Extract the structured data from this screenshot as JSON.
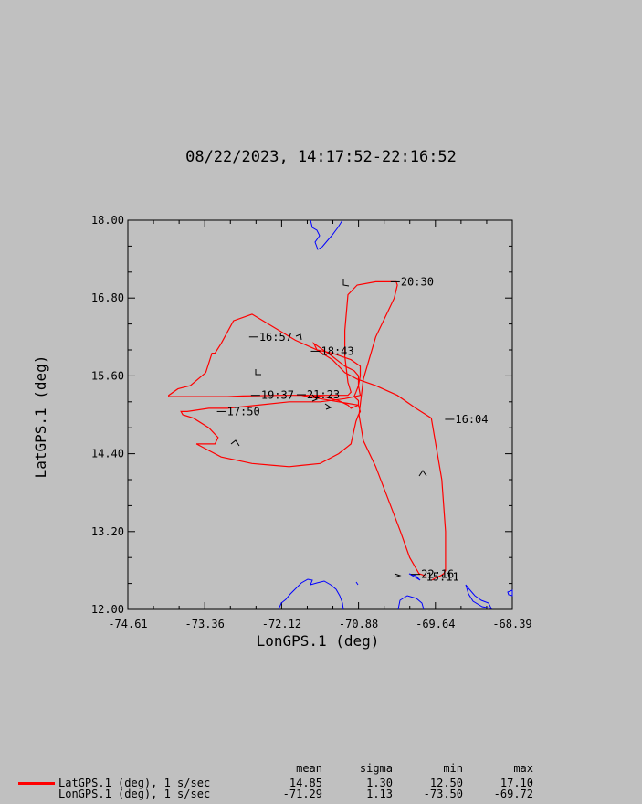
{
  "title": "08/22/2023, 14:17:52-22:16:52",
  "chart_data": {
    "type": "line",
    "title": "08/22/2023, 14:17:52-22:16:52",
    "xlabel": "LonGPS.1 (deg)",
    "ylabel": "LatGPS.1 (deg)",
    "xlim": [
      -74.61,
      -68.39
    ],
    "ylim": [
      12.0,
      18.0
    ],
    "xticks": [
      "-74.61",
      "-73.36",
      "-72.12",
      "-70.88",
      "-69.64",
      "-68.39"
    ],
    "yticks": [
      "12.00",
      "13.20",
      "14.40",
      "15.60",
      "16.80",
      "18.00"
    ],
    "grid": false,
    "series": [
      {
        "name": "LatGPS.1 (deg), 1 s/sec",
        "color": "#ff0000",
        "x": [
          -69.7,
          -69.6,
          -69.55,
          -69.5,
          -69.47,
          -69.47,
          -69.53,
          -69.7,
          -69.95,
          -70.25,
          -70.6,
          -70.9,
          -71.1,
          -71.3,
          -71.55,
          -71.9,
          -72.25,
          -72.6,
          -72.9,
          -73.1,
          -73.2,
          -73.25,
          -73.35,
          -73.6,
          -73.8,
          -73.95,
          -73.95,
          -73.75,
          -73.6,
          -73.3,
          -73.0,
          -73.0,
          -72.75,
          -72.1,
          -71.7,
          -71.45,
          -71.2,
          -71.05,
          -71.0,
          -70.88,
          -70.88,
          -70.95,
          -70.92,
          -70.88,
          -70.85,
          -70.85,
          -71.0,
          -71.3,
          -71.55,
          -71.6,
          -71.3,
          -71.1,
          -70.95,
          -70.88,
          -70.88,
          -70.85,
          -71.1,
          -71.5,
          -72.0,
          -72.5,
          -73.0,
          -73.3,
          -73.65,
          -73.75,
          -73.72,
          -73.55,
          -73.3,
          -73.15,
          -73.2,
          -73.5,
          -73.4,
          -73.1,
          -72.85,
          -72.6,
          -72.25,
          -72.0,
          -71.8,
          -71.5,
          -71.2,
          -71.0,
          -70.92,
          -70.88,
          -70.85,
          -70.88,
          -71.2,
          -71.5,
          -71.7,
          -71.8,
          -71.8,
          -71.6,
          -71.2,
          -71.05,
          -71.0,
          -71.05,
          -71.1,
          -71.1,
          -71.05,
          -70.9,
          -70.6,
          -70.27,
          -70.25,
          -70.3,
          -70.4,
          -70.6,
          -70.8,
          -70.87,
          -70.8,
          -70.6,
          -70.4,
          -70.2,
          -70.05,
          -69.9,
          -69.8
        ],
        "y": [
          12.45,
          12.5,
          12.52,
          12.55,
          12.6,
          13.2,
          14.0,
          14.95,
          15.1,
          15.3,
          15.45,
          15.55,
          15.65,
          15.85,
          16.0,
          16.15,
          16.35,
          16.55,
          16.45,
          16.1,
          15.95,
          15.95,
          15.65,
          15.45,
          15.4,
          15.3,
          15.28,
          15.28,
          15.28,
          15.28,
          15.28,
          15.28,
          15.29,
          15.3,
          15.3,
          15.28,
          15.22,
          15.15,
          15.1,
          15.15,
          15.22,
          15.28,
          15.35,
          15.45,
          15.6,
          15.75,
          15.85,
          15.95,
          16.0,
          16.1,
          15.9,
          15.75,
          15.68,
          15.6,
          15.45,
          15.3,
          15.25,
          15.2,
          15.2,
          15.15,
          15.1,
          15.1,
          15.05,
          15.05,
          15.0,
          14.95,
          14.8,
          14.65,
          14.55,
          14.55,
          14.5,
          14.35,
          14.3,
          14.25,
          14.22,
          14.2,
          14.22,
          14.25,
          14.4,
          14.55,
          14.9,
          15.0,
          15.05,
          15.15,
          15.2,
          15.25,
          15.28,
          15.3,
          15.3,
          15.3,
          15.3,
          15.3,
          15.35,
          15.5,
          15.9,
          16.3,
          16.85,
          17.0,
          17.05,
          17.05,
          17.0,
          16.8,
          16.6,
          16.2,
          15.55,
          15.0,
          14.6,
          14.2,
          13.7,
          13.2,
          12.8,
          12.55,
          12.52
        ]
      },
      {
        "name": "LonGPS.1 (deg), 1 s/sec",
        "color": "#ff0000",
        "x": [],
        "y": []
      }
    ],
    "annotations": [
      {
        "text": "20:30",
        "x": -70.21,
        "y": 17.05
      },
      {
        "text": "16:57",
        "x": -72.5,
        "y": 16.2
      },
      {
        "text": "18:43",
        "x": -71.5,
        "y": 15.98
      },
      {
        "text": "19:37",
        "x": -72.47,
        "y": 15.3
      },
      {
        "text": "21:23",
        "x": -71.73,
        "y": 15.31
      },
      {
        "text": "17:50",
        "x": -73.02,
        "y": 15.05
      },
      {
        "text": "16:04",
        "x": -69.33,
        "y": 14.93
      },
      {
        "text": "22:16",
        "x": -69.88,
        "y": 12.54
      },
      {
        "text": "15:11",
        "x": -69.8,
        "y": 12.5
      }
    ],
    "coastline_color": "#0000ff"
  },
  "stats": {
    "headers": {
      "mean": "mean",
      "sigma": "sigma",
      "min": "min",
      "max": "max"
    },
    "rows": [
      {
        "label": "LatGPS.1 (deg), 1 s/sec",
        "mean": "14.85",
        "sigma": "1.30",
        "min": "12.50",
        "max": "17.10",
        "color": "#ff0000"
      },
      {
        "label": "LonGPS.1 (deg), 1 s/sec",
        "mean": "-71.29",
        "sigma": "1.13",
        "min": "-73.50",
        "max": "-69.72"
      }
    ]
  }
}
